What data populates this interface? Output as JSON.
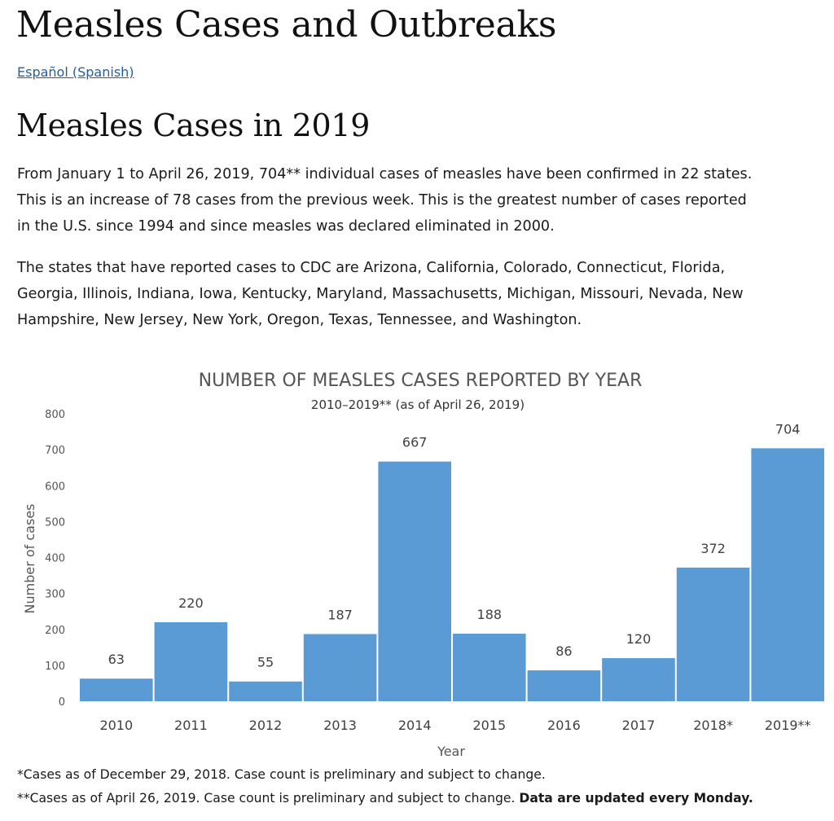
{
  "page": {
    "title": "Measles Cases and Outbreaks",
    "language_link": "Español (Spanish)",
    "section_title": "Measles Cases in 2019",
    "paragraph1_lines": [
      "From January 1 to April 26, 2019, 704** individual cases of measles have been confirmed in 22 states.",
      "This is an increase of 78 cases from the previous week. This is the greatest number of cases reported",
      "in the U.S. since 1994 and since measles was declared eliminated in 2000."
    ],
    "paragraph2_lines": [
      "The states that have reported cases to CDC are Arizona, California, Colorado, Connecticut, Florida,",
      "Georgia, Illinois, Indiana, Iowa, Kentucky, Maryland, Massachusetts, Michigan, Missouri, Nevada, New",
      "Hampshire, New Jersey, New York, Oregon, Texas, Tennessee, and Washington."
    ],
    "footnote1": "*Cases as of December 29, 2018. Case count is preliminary and subject to change.",
    "footnote2": "**Cases as of April 26, 2019. Case count is preliminary and subject to change.",
    "footnote2_bold": "Data are updated every Monday."
  },
  "chart_data": {
    "type": "bar",
    "title": "NUMBER OF MEASLES CASES REPORTED BY YEAR",
    "subtitle": "2010–2019** (as of April 26, 2019)",
    "xlabel": "Year",
    "ylabel": "Number of cases",
    "ylim": [
      0,
      800
    ],
    "yticks": [
      0,
      100,
      200,
      300,
      400,
      500,
      600,
      700,
      800
    ],
    "grid": false,
    "categories": [
      "2010",
      "2011",
      "2012",
      "2013",
      "2014",
      "2015",
      "2016",
      "2017",
      "2018*",
      "2019**"
    ],
    "values": [
      63,
      220,
      55,
      187,
      667,
      188,
      86,
      120,
      372,
      704
    ],
    "bar_color": "#5b9bd5"
  }
}
